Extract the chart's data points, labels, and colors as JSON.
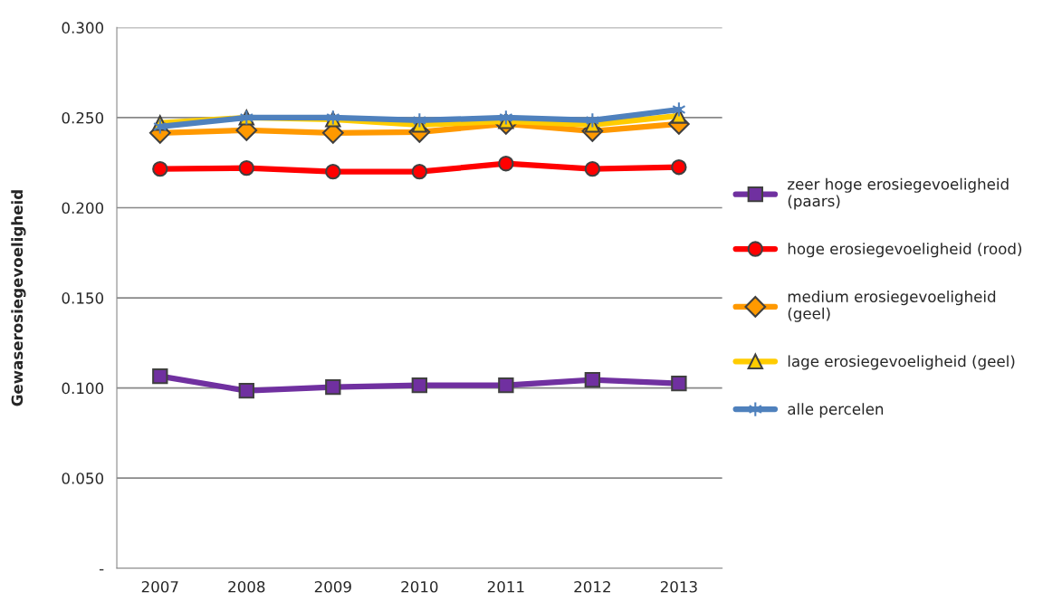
{
  "chart_data": {
    "type": "line",
    "ylabel": "Gewaserosiegevoeligheid",
    "categories": [
      "2007",
      "2008",
      "2009",
      "2010",
      "2011",
      "2012",
      "2013"
    ],
    "ylim": [
      0,
      0.3
    ],
    "yticks": [
      {
        "value": 0,
        "label": "-"
      },
      {
        "value": 0.05,
        "label": "0.050"
      },
      {
        "value": 0.1,
        "label": "0.100"
      },
      {
        "value": 0.15,
        "label": "0.150"
      },
      {
        "value": 0.2,
        "label": "0.200"
      },
      {
        "value": 0.25,
        "label": "0.250"
      },
      {
        "value": 0.3,
        "label": "0.300"
      }
    ],
    "grid": "y",
    "legend": "right",
    "line_style": "solid",
    "series": [
      {
        "name": "zeer hoge erosiegevoeligheid (paars)",
        "color": "#7030a0",
        "marker": "square",
        "values": [
          0.1065,
          0.0985,
          0.1005,
          0.1015,
          0.1015,
          0.1045,
          0.1025
        ]
      },
      {
        "name": "hoge erosiegevoeligheid (rood)",
        "color": "#ff0000",
        "marker": "circle",
        "values": [
          0.2215,
          0.222,
          0.22,
          0.22,
          0.2245,
          0.2215,
          0.2225
        ]
      },
      {
        "name": "medium erosiegevoeligheid (geel)",
        "color": "#ff9900",
        "marker": "diamond",
        "values": [
          0.2415,
          0.243,
          0.2415,
          0.242,
          0.2465,
          0.2425,
          0.2465
        ]
      },
      {
        "name": "lage erosiegevoeligheid (geel)",
        "color": "#ffcc00",
        "marker": "triangle",
        "values": [
          0.247,
          0.25,
          0.249,
          0.246,
          0.248,
          0.246,
          0.251
        ]
      },
      {
        "name": "alle percelen",
        "color": "#4f81bd",
        "marker": "cross",
        "values": [
          0.245,
          0.25,
          0.25,
          0.2485,
          0.25,
          0.2485,
          0.2545
        ]
      }
    ]
  }
}
